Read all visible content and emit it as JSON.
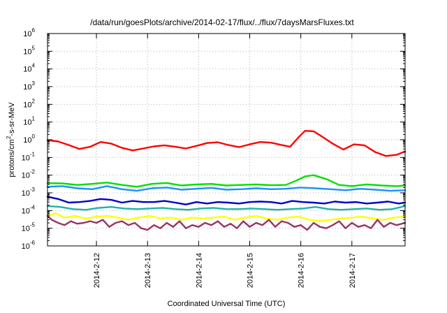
{
  "chart_data": {
    "type": "line",
    "title": "/data/run/goesPlots/archive/2014-02-17/flux/../flux/7daysMarsFluxes.txt",
    "xlabel": "Coordinated Universal Time (UTC)",
    "ylabel_parts": [
      "protons/cm",
      "2",
      "-s-sr-MeV"
    ],
    "y_scale": "log",
    "ylim": [
      1e-06,
      1000000.0
    ],
    "y_ticks": [
      {
        "base": "10",
        "exp": "-6",
        "value": 1e-06
      },
      {
        "base": "10",
        "exp": "-5",
        "value": 1e-05
      },
      {
        "base": "10",
        "exp": "-4",
        "value": 0.0001
      },
      {
        "base": "10",
        "exp": "-3",
        "value": 0.001
      },
      {
        "base": "10",
        "exp": "-2",
        "value": 0.01
      },
      {
        "base": "10",
        "exp": "-1",
        "value": 0.1
      },
      {
        "base": "10",
        "exp": "0",
        "value": 1
      },
      {
        "base": "10",
        "exp": "1",
        "value": 10
      },
      {
        "base": "10",
        "exp": "2",
        "value": 100
      },
      {
        "base": "10",
        "exp": "3",
        "value": 1000
      },
      {
        "base": "10",
        "exp": "4",
        "value": 10000
      },
      {
        "base": "10",
        "exp": "5",
        "value": 100000
      },
      {
        "base": "10",
        "exp": "6",
        "value": 1000000
      }
    ],
    "xlim": [
      "2014-02-11T01:00",
      "2014-02-18T01:00"
    ],
    "x_ticks": [
      "2014-2-12",
      "2014-2-13",
      "2014-2-14",
      "2014-2-15",
      "2014-2-16",
      "2014-2-17"
    ],
    "grid": true,
    "legend": "none",
    "series": [
      {
        "color": "#ff0000",
        "x": [
          "2014-02-11T01:00",
          "2014-02-11T06:00",
          "2014-02-11T11:00",
          "2014-02-11T16:00",
          "2014-02-11T21:00",
          "2014-02-12T02:00",
          "2014-02-12T07:00",
          "2014-02-12T12:00",
          "2014-02-12T17:00",
          "2014-02-12T22:00",
          "2014-02-13T03:00",
          "2014-02-13T08:00",
          "2014-02-13T13:00",
          "2014-02-13T18:00",
          "2014-02-13T23:00",
          "2014-02-14T04:00",
          "2014-02-14T09:00",
          "2014-02-14T14:00",
          "2014-02-14T19:00",
          "2014-02-15T00:00",
          "2014-02-15T05:00",
          "2014-02-15T10:00",
          "2014-02-15T15:00",
          "2014-02-15T19:00",
          "2014-02-15T23:00",
          "2014-02-16T02:00",
          "2014-02-16T06:00",
          "2014-02-16T10:00",
          "2014-02-16T15:00",
          "2014-02-16T20:00",
          "2014-02-17T01:00",
          "2014-02-17T06:00",
          "2014-02-17T11:00",
          "2014-02-17T16:00",
          "2014-02-17T21:00",
          "2014-02-18T01:00"
        ],
        "y": [
          0.95,
          0.8,
          0.5,
          0.3,
          0.4,
          0.75,
          0.6,
          0.35,
          0.25,
          0.32,
          0.42,
          0.48,
          0.4,
          0.32,
          0.45,
          0.65,
          0.72,
          0.5,
          0.38,
          0.55,
          0.75,
          0.68,
          0.5,
          0.4,
          1.4,
          3.2,
          3.0,
          1.5,
          0.6,
          0.28,
          0.55,
          0.48,
          0.2,
          0.12,
          0.14,
          0.22
        ]
      },
      {
        "color": "#00e000",
        "x": [
          "2014-02-11T01:00",
          "2014-02-11T08:00",
          "2014-02-11T15:00",
          "2014-02-11T22:00",
          "2014-02-12T05:00",
          "2014-02-12T12:00",
          "2014-02-12T19:00",
          "2014-02-13T02:00",
          "2014-02-13T09:00",
          "2014-02-13T16:00",
          "2014-02-13T23:00",
          "2014-02-14T06:00",
          "2014-02-14T13:00",
          "2014-02-14T20:00",
          "2014-02-15T03:00",
          "2014-02-15T10:00",
          "2014-02-15T17:00",
          "2014-02-15T22:00",
          "2014-02-16T02:00",
          "2014-02-16T06:00",
          "2014-02-16T12:00",
          "2014-02-16T18:00",
          "2014-02-17T00:00",
          "2014-02-17T07:00",
          "2014-02-17T14:00",
          "2014-02-17T21:00",
          "2014-02-18T01:00"
        ],
        "y": [
          0.0035,
          0.0034,
          0.0028,
          0.0032,
          0.0038,
          0.0028,
          0.0022,
          0.0032,
          0.0036,
          0.0026,
          0.003,
          0.0032,
          0.0026,
          0.0028,
          0.003,
          0.0027,
          0.0028,
          0.005,
          0.0085,
          0.01,
          0.006,
          0.0028,
          0.0024,
          0.003,
          0.0026,
          0.0024,
          0.0026
        ]
      },
      {
        "color": "#1e90ff",
        "x": [
          "2014-02-11T01:00",
          "2014-02-11T08:00",
          "2014-02-11T15:00",
          "2014-02-11T22:00",
          "2014-02-12T05:00",
          "2014-02-12T12:00",
          "2014-02-12T19:00",
          "2014-02-13T02:00",
          "2014-02-13T09:00",
          "2014-02-13T16:00",
          "2014-02-13T23:00",
          "2014-02-14T06:00",
          "2014-02-14T13:00",
          "2014-02-14T20:00",
          "2014-02-15T03:00",
          "2014-02-15T10:00",
          "2014-02-15T17:00",
          "2014-02-16T00:00",
          "2014-02-16T07:00",
          "2014-02-16T14:00",
          "2014-02-16T21:00",
          "2014-02-17T04:00",
          "2014-02-17T11:00",
          "2014-02-17T18:00",
          "2014-02-18T01:00"
        ],
        "y": [
          0.0022,
          0.0024,
          0.0018,
          0.0016,
          0.0024,
          0.0016,
          0.0013,
          0.0018,
          0.002,
          0.0015,
          0.0017,
          0.0019,
          0.0015,
          0.0016,
          0.0018,
          0.0016,
          0.0017,
          0.002,
          0.0018,
          0.0016,
          0.0014,
          0.0017,
          0.0015,
          0.0013,
          0.0014
        ]
      },
      {
        "color": "#0000cc",
        "x": [
          "2014-02-11T01:00",
          "2014-02-11T06:00",
          "2014-02-11T11:00",
          "2014-02-11T16:00",
          "2014-02-11T21:00",
          "2014-02-12T02:00",
          "2014-02-12T07:00",
          "2014-02-12T12:00",
          "2014-02-12T17:00",
          "2014-02-12T22:00",
          "2014-02-13T03:00",
          "2014-02-13T08:00",
          "2014-02-13T13:00",
          "2014-02-13T18:00",
          "2014-02-13T23:00",
          "2014-02-14T04:00",
          "2014-02-14T09:00",
          "2014-02-14T14:00",
          "2014-02-14T19:00",
          "2014-02-15T00:00",
          "2014-02-15T05:00",
          "2014-02-15T10:00",
          "2014-02-15T15:00",
          "2014-02-15T20:00",
          "2014-02-16T01:00",
          "2014-02-16T06:00",
          "2014-02-16T11:00",
          "2014-02-16T16:00",
          "2014-02-16T21:00",
          "2014-02-17T02:00",
          "2014-02-17T07:00",
          "2014-02-17T12:00",
          "2014-02-17T17:00",
          "2014-02-17T22:00",
          "2014-02-18T01:00"
        ],
        "y": [
          0.0006,
          0.00045,
          0.00028,
          0.0003,
          0.00035,
          0.00045,
          0.0004,
          0.00028,
          0.00035,
          0.0003,
          0.0003,
          0.00035,
          0.00028,
          0.00022,
          0.0003,
          0.00025,
          0.0003,
          0.00028,
          0.00025,
          0.0003,
          0.00032,
          0.0003,
          0.00025,
          0.00035,
          0.0003,
          0.00028,
          0.00025,
          0.00032,
          0.00028,
          0.0003,
          0.00025,
          0.00028,
          0.00032,
          0.00025,
          0.00028
        ]
      },
      {
        "color": "#20b2aa",
        "x": [
          "2014-02-11T01:00",
          "2014-02-11T07:00",
          "2014-02-11T13:00",
          "2014-02-11T19:00",
          "2014-02-12T01:00",
          "2014-02-12T07:00",
          "2014-02-12T13:00",
          "2014-02-12T19:00",
          "2014-02-13T01:00",
          "2014-02-13T07:00",
          "2014-02-13T13:00",
          "2014-02-13T19:00",
          "2014-02-14T01:00",
          "2014-02-14T07:00",
          "2014-02-14T13:00",
          "2014-02-14T19:00",
          "2014-02-15T01:00",
          "2014-02-15T07:00",
          "2014-02-15T13:00",
          "2014-02-15T19:00",
          "2014-02-16T01:00",
          "2014-02-16T07:00",
          "2014-02-16T13:00",
          "2014-02-16T19:00",
          "2014-02-17T01:00",
          "2014-02-17T07:00",
          "2014-02-17T13:00",
          "2014-02-17T19:00",
          "2014-02-18T01:00"
        ],
        "y": [
          0.00018,
          0.00016,
          0.00012,
          0.00011,
          0.00014,
          0.00016,
          0.00013,
          0.00012,
          0.00013,
          0.00014,
          0.00012,
          0.00011,
          0.00013,
          0.00014,
          0.00012,
          0.00012,
          0.00013,
          0.00012,
          0.00011,
          0.00012,
          0.00013,
          0.00016,
          0.00012,
          0.00011,
          0.00012,
          0.00013,
          0.00011,
          0.00012,
          0.00018
        ]
      },
      {
        "color": "#ffff00",
        "x": [
          "2014-02-11T01:00",
          "2014-02-11T05:00",
          "2014-02-11T09:00",
          "2014-02-11T14:00",
          "2014-02-11T19:00",
          "2014-02-12T00:00",
          "2014-02-12T05:00",
          "2014-02-12T10:00",
          "2014-02-12T15:00",
          "2014-02-12T20:00",
          "2014-02-13T01:00",
          "2014-02-13T06:00",
          "2014-02-13T11:00",
          "2014-02-13T16:00",
          "2014-02-13T21:00",
          "2014-02-14T02:00",
          "2014-02-14T07:00",
          "2014-02-14T12:00",
          "2014-02-14T17:00",
          "2014-02-14T22:00",
          "2014-02-15T03:00",
          "2014-02-15T08:00",
          "2014-02-15T13:00",
          "2014-02-15T18:00",
          "2014-02-15T23:00",
          "2014-02-16T04:00",
          "2014-02-16T09:00",
          "2014-02-16T14:00",
          "2014-02-16T19:00",
          "2014-02-17T00:00",
          "2014-02-17T05:00",
          "2014-02-17T10:00",
          "2014-02-17T15:00",
          "2014-02-17T20:00",
          "2014-02-18T01:00"
        ],
        "y": [
          5e-05,
          7e-05,
          4e-05,
          5e-05,
          3.5e-05,
          4.5e-05,
          5e-05,
          4e-05,
          3e-05,
          4e-05,
          5e-05,
          3.5e-05,
          4e-05,
          3e-05,
          4e-05,
          3.5e-05,
          4e-05,
          4.5e-05,
          3e-05,
          4e-05,
          5e-05,
          3.5e-05,
          3e-05,
          4e-05,
          4.5e-05,
          3e-05,
          2.5e-05,
          3e-05,
          3.5e-05,
          4e-05,
          4.5e-05,
          3.5e-05,
          3e-05,
          4e-05,
          4.5e-05
        ]
      },
      {
        "color": "#993366",
        "x": [
          "2014-02-11T01:00",
          "2014-02-11T03:00",
          "2014-02-11T06:00",
          "2014-02-11T09:00",
          "2014-02-11T12:00",
          "2014-02-11T15:00",
          "2014-02-11T18:00",
          "2014-02-11T21:00",
          "2014-02-12T00:00",
          "2014-02-12T03:00",
          "2014-02-12T06:00",
          "2014-02-12T09:00",
          "2014-02-12T12:00",
          "2014-02-12T15:00",
          "2014-02-12T18:00",
          "2014-02-12T21:00",
          "2014-02-13T00:00",
          "2014-02-13T03:00",
          "2014-02-13T06:00",
          "2014-02-13T09:00",
          "2014-02-13T12:00",
          "2014-02-13T15:00",
          "2014-02-13T18:00",
          "2014-02-13T21:00",
          "2014-02-14T00:00",
          "2014-02-14T03:00",
          "2014-02-14T06:00",
          "2014-02-14T09:00",
          "2014-02-14T12:00",
          "2014-02-14T15:00",
          "2014-02-14T18:00",
          "2014-02-14T21:00",
          "2014-02-15T00:00",
          "2014-02-15T03:00",
          "2014-02-15T06:00",
          "2014-02-15T09:00",
          "2014-02-15T12:00",
          "2014-02-15T15:00",
          "2014-02-15T18:00",
          "2014-02-15T21:00",
          "2014-02-16T00:00",
          "2014-02-16T03:00",
          "2014-02-16T06:00",
          "2014-02-16T09:00",
          "2014-02-16T12:00",
          "2014-02-16T15:00",
          "2014-02-16T18:00",
          "2014-02-16T21:00",
          "2014-02-17T00:00",
          "2014-02-17T03:00",
          "2014-02-17T06:00",
          "2014-02-17T09:00",
          "2014-02-17T12:00",
          "2014-02-17T15:00",
          "2014-02-17T18:00",
          "2014-02-17T21:00",
          "2014-02-18T01:00"
        ],
        "y": [
          5e-05,
          3e-05,
          2e-05,
          1.5e-05,
          2.5e-05,
          1.8e-05,
          2e-05,
          2.5e-05,
          2e-05,
          3e-05,
          1.2e-05,
          2e-05,
          2.5e-05,
          1.5e-05,
          2e-05,
          1e-05,
          8e-06,
          1.5e-05,
          1e-05,
          2e-05,
          1.2e-05,
          2.5e-05,
          1e-05,
          1.5e-05,
          1.2e-05,
          2e-05,
          1.5e-05,
          2.5e-05,
          1.2e-05,
          1.8e-05,
          1e-05,
          2.5e-05,
          1.2e-05,
          2e-05,
          1.5e-05,
          3e-05,
          1.2e-05,
          2.5e-05,
          2e-05,
          1.2e-05,
          1.5e-05,
          8e-06,
          2e-05,
          1.2e-05,
          1e-05,
          1.5e-05,
          2.5e-05,
          1e-05,
          2e-05,
          1.2e-05,
          1.5e-05,
          1e-05,
          3e-05,
          1.2e-05,
          2e-05,
          1.5e-05,
          2e-05
        ]
      }
    ]
  }
}
